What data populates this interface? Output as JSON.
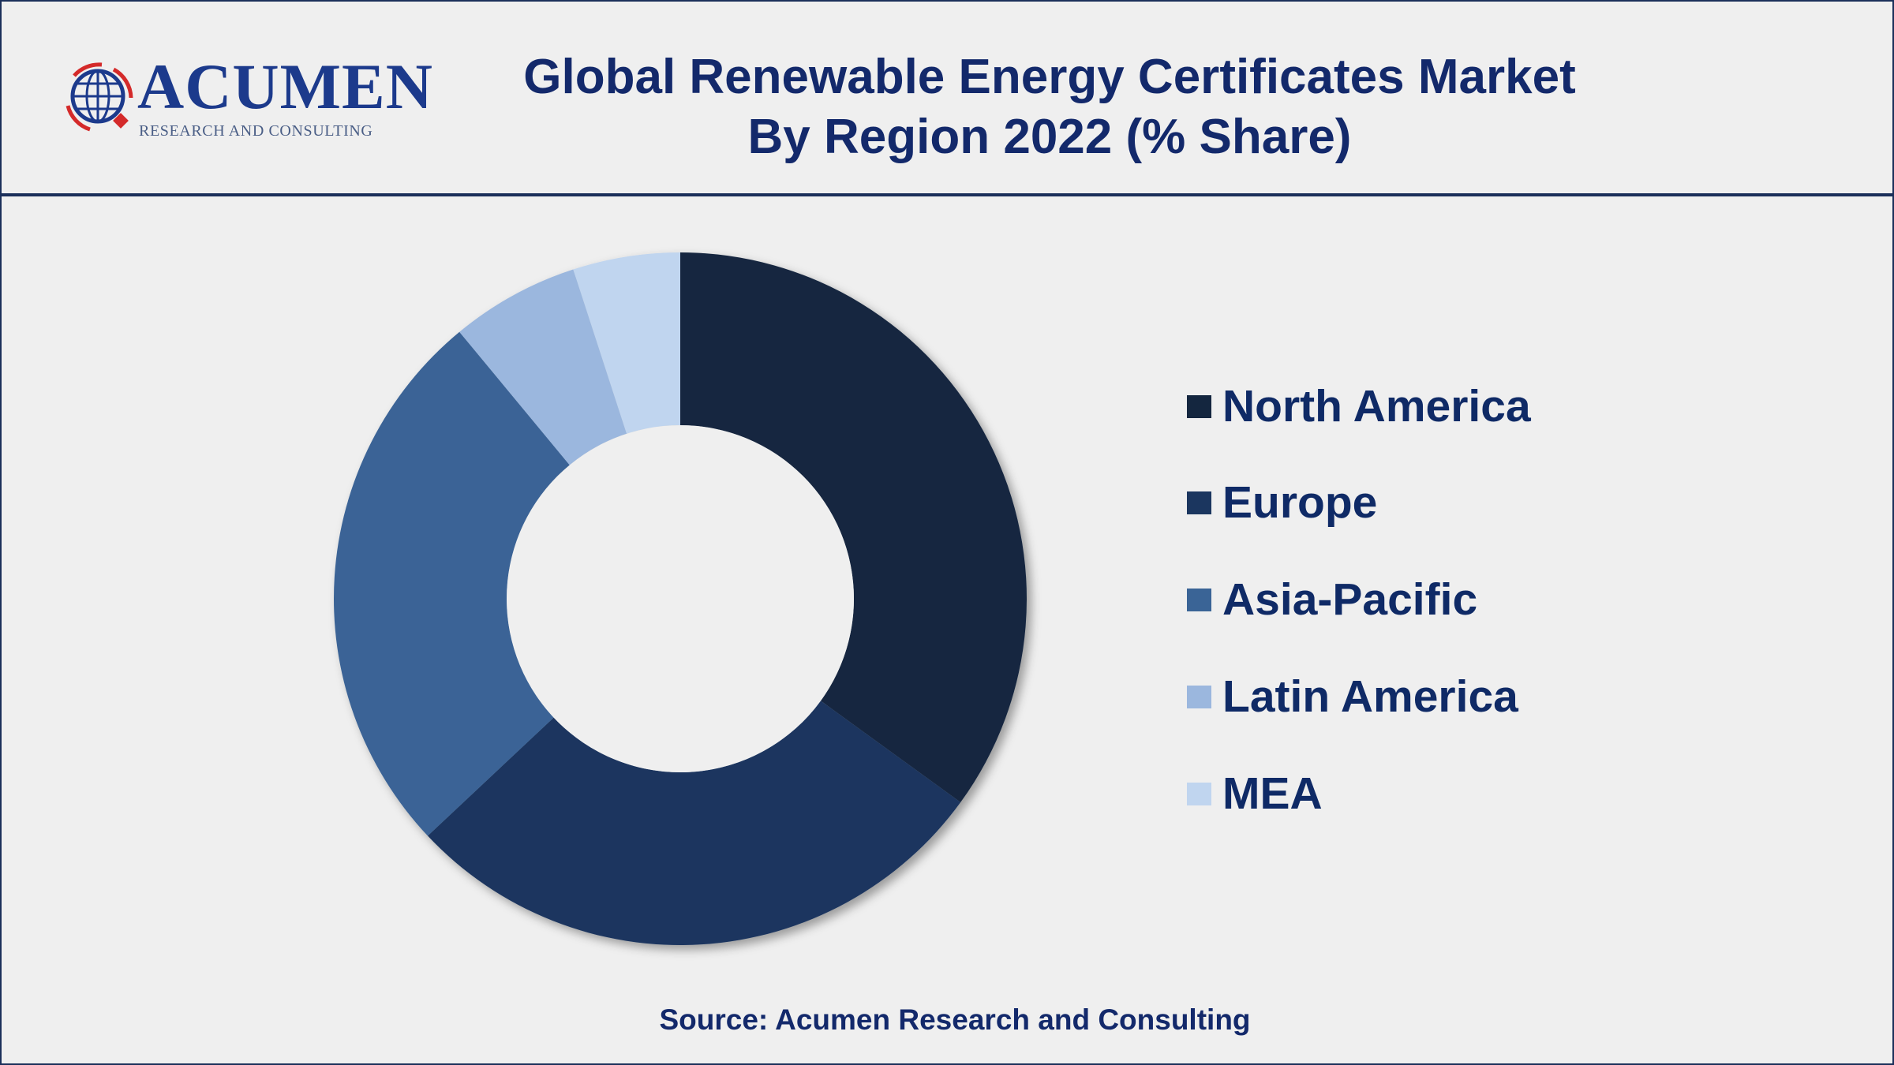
{
  "header": {
    "title_line1": "Global Renewable Energy Certificates Market",
    "title_line2": "By Region 2022 (% Share)",
    "logo_text": "ACUMEN",
    "logo_subtext": "RESEARCH AND CONSULTING"
  },
  "chart_data": {
    "type": "pie",
    "subtype": "donut",
    "title": "Global Renewable Energy Certificates Market By Region 2022 (% Share)",
    "categories": [
      "North America",
      "Europe",
      "Asia-Pacific",
      "Latin America",
      "MEA"
    ],
    "values": [
      35,
      28,
      26,
      6,
      5
    ],
    "unit": "%",
    "colors": [
      "#14263f",
      "#1b365f",
      "#3a6496",
      "#9bb7de",
      "#c0d5ef"
    ],
    "start": "12 o'clock, clockwise",
    "legend_position": "right",
    "data_labels": false
  },
  "legend": {
    "items": [
      "North America",
      "Europe",
      "Asia-Pacific",
      "Latin America",
      "MEA"
    ]
  },
  "footer": {
    "source": "Source: Acumen Research and Consulting"
  }
}
